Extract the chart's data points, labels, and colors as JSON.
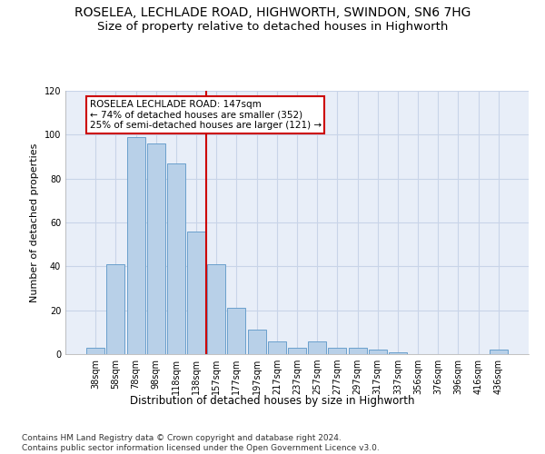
{
  "title": "ROSELEA, LECHLADE ROAD, HIGHWORTH, SWINDON, SN6 7HG",
  "subtitle": "Size of property relative to detached houses in Highworth",
  "xlabel": "Distribution of detached houses by size in Highworth",
  "ylabel": "Number of detached properties",
  "categories": [
    "38sqm",
    "58sqm",
    "78sqm",
    "98sqm",
    "118sqm",
    "138sqm",
    "157sqm",
    "177sqm",
    "197sqm",
    "217sqm",
    "237sqm",
    "257sqm",
    "277sqm",
    "297sqm",
    "317sqm",
    "337sqm",
    "356sqm",
    "376sqm",
    "396sqm",
    "416sqm",
    "436sqm"
  ],
  "values": [
    3,
    41,
    99,
    96,
    87,
    56,
    41,
    21,
    11,
    6,
    3,
    6,
    3,
    3,
    2,
    1,
    0,
    0,
    0,
    0,
    2
  ],
  "bar_color": "#b8d0e8",
  "bar_edge_color": "#6aa0cc",
  "vline_color": "#cc0000",
  "vline_x": 5.5,
  "annotation_text": "ROSELEA LECHLADE ROAD: 147sqm\n← 74% of detached houses are smaller (352)\n25% of semi-detached houses are larger (121) →",
  "annotation_box_facecolor": "#ffffff",
  "annotation_box_edgecolor": "#cc0000",
  "ylim": [
    0,
    120
  ],
  "yticks": [
    0,
    20,
    40,
    60,
    80,
    100,
    120
  ],
  "grid_color": "#c8d4e8",
  "background_color": "#e8eef8",
  "footer_text": "Contains HM Land Registry data © Crown copyright and database right 2024.\nContains public sector information licensed under the Open Government Licence v3.0.",
  "title_fontsize": 10,
  "subtitle_fontsize": 9.5,
  "xlabel_fontsize": 8.5,
  "ylabel_fontsize": 8,
  "tick_fontsize": 7,
  "annotation_fontsize": 7.5,
  "footer_fontsize": 6.5
}
